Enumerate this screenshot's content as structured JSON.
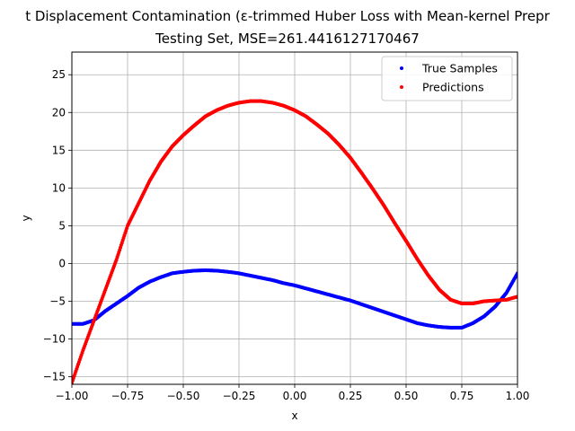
{
  "chart_data": {
    "type": "scatter",
    "title_line1": "t Displacement Contamination (ε-trimmed Huber Loss with Mean-kernel Prepr",
    "title_line2": "Testing Set, MSE=261.4416127170467",
    "xlabel": "x",
    "ylabel": "y",
    "xlim": [
      -1.0,
      1.0
    ],
    "ylim": [
      -16,
      28
    ],
    "xticks": [
      -1.0,
      -0.75,
      -0.5,
      -0.25,
      0.0,
      0.25,
      0.5,
      0.75,
      1.0
    ],
    "xtick_labels": [
      "−1.00",
      "−0.75",
      "−0.50",
      "−0.25",
      "0.00",
      "0.25",
      "0.50",
      "0.75",
      "1.00"
    ],
    "yticks": [
      -15,
      -10,
      -5,
      0,
      5,
      10,
      15,
      20,
      25
    ],
    "ytick_labels": [
      "−15",
      "−10",
      "−5",
      "0",
      "5",
      "10",
      "15",
      "20",
      "25"
    ],
    "grid": true,
    "legend_position": "top-right",
    "series": [
      {
        "name": "True Samples",
        "color": "#0000ff",
        "x": [
          -1.0,
          -0.95,
          -0.9,
          -0.85,
          -0.8,
          -0.75,
          -0.7,
          -0.65,
          -0.6,
          -0.55,
          -0.5,
          -0.45,
          -0.4,
          -0.35,
          -0.3,
          -0.25,
          -0.2,
          -0.15,
          -0.1,
          -0.05,
          0.0,
          0.05,
          0.1,
          0.15,
          0.2,
          0.25,
          0.3,
          0.35,
          0.4,
          0.45,
          0.5,
          0.55,
          0.6,
          0.65,
          0.7,
          0.75,
          0.8,
          0.85,
          0.9,
          0.95,
          1.0
        ],
        "y": [
          -8.0,
          -8.0,
          -7.5,
          -6.3,
          -5.3,
          -4.3,
          -3.2,
          -2.4,
          -1.8,
          -1.3,
          -1.1,
          -0.95,
          -0.9,
          -0.95,
          -1.1,
          -1.3,
          -1.6,
          -1.9,
          -2.2,
          -2.6,
          -2.9,
          -3.3,
          -3.7,
          -4.1,
          -4.5,
          -4.9,
          -5.4,
          -5.9,
          -6.4,
          -6.9,
          -7.4,
          -7.9,
          -8.2,
          -8.4,
          -8.5,
          -8.5,
          -7.9,
          -7.0,
          -5.7,
          -3.9,
          -1.3
        ]
      },
      {
        "name": "Predictions",
        "color": "#ff0000",
        "x": [
          -1.0,
          -0.95,
          -0.9,
          -0.85,
          -0.8,
          -0.75,
          -0.7,
          -0.65,
          -0.6,
          -0.55,
          -0.5,
          -0.45,
          -0.4,
          -0.35,
          -0.3,
          -0.25,
          -0.2,
          -0.15,
          -0.1,
          -0.05,
          0.0,
          0.05,
          0.1,
          0.15,
          0.2,
          0.25,
          0.3,
          0.35,
          0.4,
          0.45,
          0.5,
          0.55,
          0.6,
          0.65,
          0.7,
          0.75,
          0.8,
          0.85,
          0.9,
          0.95,
          1.0
        ],
        "y": [
          -15.8,
          -11.5,
          -7.5,
          -3.5,
          0.5,
          5.0,
          8.0,
          11.0,
          13.5,
          15.5,
          17.0,
          18.3,
          19.5,
          20.3,
          20.9,
          21.3,
          21.5,
          21.5,
          21.3,
          20.9,
          20.3,
          19.5,
          18.4,
          17.2,
          15.7,
          14.0,
          12.0,
          9.9,
          7.7,
          5.3,
          3.0,
          0.6,
          -1.6,
          -3.5,
          -4.8,
          -5.3,
          -5.3,
          -5.0,
          -4.9,
          -4.8,
          -4.4
        ]
      }
    ]
  }
}
